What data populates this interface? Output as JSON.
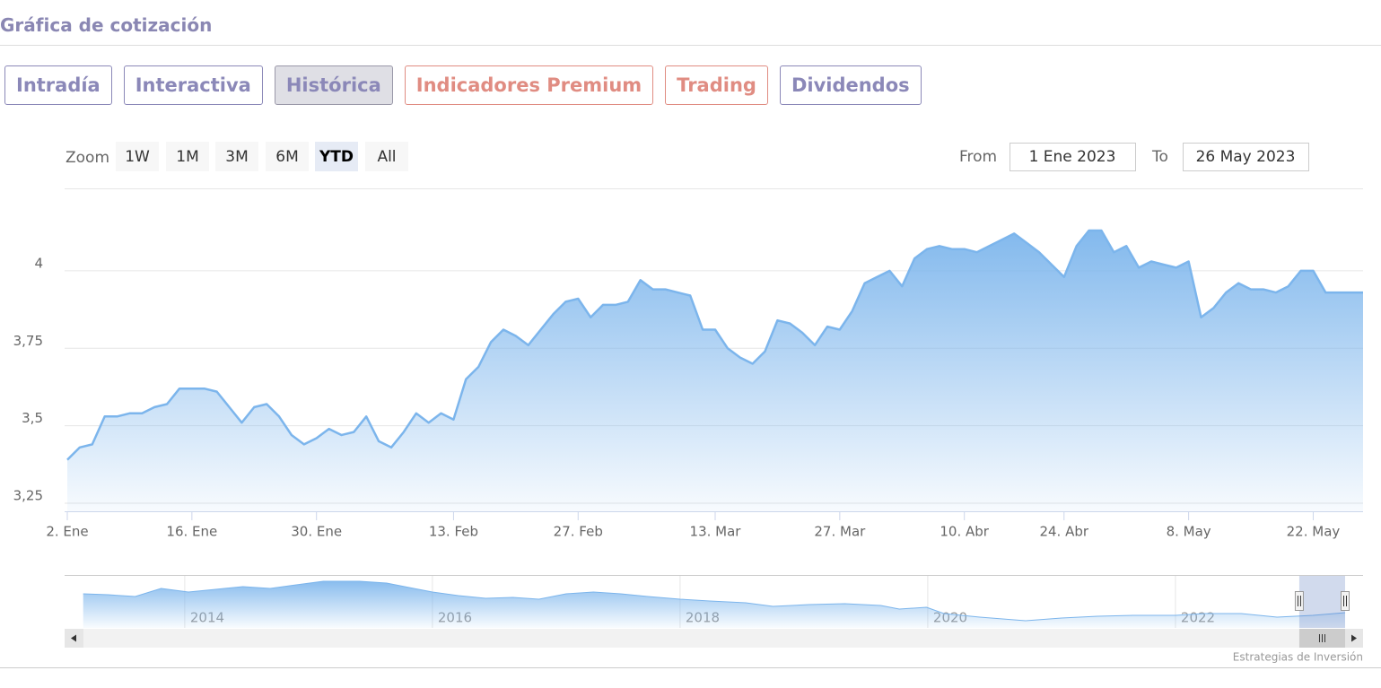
{
  "header": {
    "title": "Gráfica de cotización"
  },
  "tabs": [
    {
      "label": "Intradía",
      "color": "#8b88b8",
      "active": false
    },
    {
      "label": "Interactiva",
      "color": "#8b88b8",
      "active": false
    },
    {
      "label": "Histórica",
      "color": "#8b88b8",
      "active": true
    },
    {
      "label": "Indicadores Premium",
      "color": "#e08c82",
      "active": false
    },
    {
      "label": "Trading",
      "color": "#e08c82",
      "active": false
    },
    {
      "label": "Dividendos",
      "color": "#8b88b8",
      "active": false
    }
  ],
  "zoom": {
    "label": "Zoom",
    "buttons": [
      "1W",
      "1M",
      "3M",
      "6M",
      "YTD",
      "All"
    ],
    "selected": 4
  },
  "range": {
    "from_label": "From",
    "from": "1 Ene 2023",
    "to_label": "To",
    "to": "26 May 2023"
  },
  "credits": "Estrategias de Inversión",
  "chart_data": [
    {
      "type": "area",
      "color": "#7cb5ec",
      "grid": true,
      "categories": [
        "2. Ene",
        null,
        null,
        null,
        null,
        null,
        null,
        null,
        null,
        null,
        "16. Ene",
        null,
        null,
        null,
        null,
        null,
        null,
        null,
        null,
        null,
        "30. Ene",
        null,
        null,
        null,
        null,
        null,
        null,
        null,
        null,
        null,
        null,
        "13. Feb",
        null,
        null,
        null,
        null,
        null,
        null,
        null,
        null,
        null,
        "27. Feb",
        null,
        null,
        null,
        null,
        null,
        null,
        null,
        null,
        null,
        null,
        "13. Mar",
        null,
        null,
        null,
        null,
        null,
        null,
        null,
        null,
        null,
        "27. Mar",
        null,
        null,
        null,
        null,
        null,
        null,
        null,
        null,
        null,
        "10. Abr",
        null,
        null,
        null,
        null,
        null,
        null,
        null,
        "24. Abr",
        null,
        null,
        null,
        null,
        null,
        null,
        null,
        null,
        null,
        "8. May",
        null,
        null,
        null,
        null,
        null,
        null,
        null,
        null,
        null,
        "22. May",
        null,
        null,
        null,
        null
      ],
      "values": [
        3.39,
        3.43,
        3.44,
        3.53,
        3.53,
        3.54,
        3.54,
        3.56,
        3.57,
        3.62,
        3.62,
        3.62,
        3.61,
        3.56,
        3.51,
        3.56,
        3.57,
        3.53,
        3.47,
        3.44,
        3.46,
        3.49,
        3.47,
        3.48,
        3.53,
        3.45,
        3.43,
        3.48,
        3.54,
        3.51,
        3.54,
        3.52,
        3.65,
        3.69,
        3.77,
        3.81,
        3.79,
        3.76,
        3.81,
        3.86,
        3.9,
        3.91,
        3.85,
        3.89,
        3.89,
        3.9,
        3.97,
        3.94,
        3.94,
        3.93,
        3.92,
        3.81,
        3.81,
        3.75,
        3.72,
        3.7,
        3.74,
        3.84,
        3.83,
        3.8,
        3.76,
        3.82,
        3.81,
        3.87,
        3.96,
        3.98,
        4.0,
        3.95,
        4.04,
        4.07,
        4.08,
        4.07,
        4.07,
        4.06,
        4.08,
        4.1,
        4.12,
        4.09,
        4.06,
        4.02,
        3.98,
        4.08,
        4.13,
        4.13,
        4.06,
        4.08,
        4.01,
        4.03,
        4.02,
        4.01,
        4.03,
        3.85,
        3.88,
        3.93,
        3.96,
        3.94,
        3.94,
        3.93,
        3.95,
        4.0,
        4.0,
        3.93,
        3.93,
        3.93,
        3.93
      ],
      "ylim": [
        3.224,
        4.266
      ],
      "yticks": [
        {
          "value": 3.25,
          "label": "3,25"
        },
        {
          "value": 3.5,
          "label": "3,5"
        },
        {
          "value": 3.75,
          "label": "3,75"
        },
        4
      ]
    },
    {
      "type": "area",
      "color": "#7cb5ec",
      "x": [
        2013.18,
        2013.38,
        2013.6,
        2013.81,
        2014.03,
        2014.25,
        2014.47,
        2014.69,
        2014.9,
        2015.12,
        2015.41,
        2015.63,
        2015.85,
        2016.0,
        2016.21,
        2016.43,
        2016.65,
        2016.86,
        2017.08,
        2017.3,
        2017.52,
        2017.74,
        2018.0,
        2018.24,
        2018.53,
        2018.75,
        2019.04,
        2019.33,
        2019.62,
        2019.77,
        2019.99,
        2020.13,
        2020.42,
        2020.79,
        2021.08,
        2021.37,
        2021.66,
        2022.0,
        2022.24,
        2022.53,
        2022.82,
        2023.11,
        2023.37
      ],
      "values": [
        9.05,
        8.81,
        8.33,
        10.48,
        9.52,
        10.24,
        10.95,
        10.48,
        11.43,
        12.38,
        12.38,
        11.9,
        10.48,
        9.52,
        8.57,
        7.86,
        8.1,
        7.62,
        9.05,
        9.52,
        9.05,
        8.33,
        7.62,
        7.14,
        6.67,
        5.71,
        6.19,
        6.43,
        5.95,
        5.0,
        5.48,
        3.81,
        2.86,
        1.9,
        2.62,
        3.1,
        3.33,
        3.33,
        3.81,
        3.81,
        2.86,
        3.33,
        4.05
      ],
      "xlim": [
        2013.03,
        2023.37
      ],
      "ylim": [
        0,
        13.8
      ],
      "xticks": [
        2014,
        2016,
        2018,
        2020,
        2022
      ],
      "selection": [
        2023.0,
        2023.37
      ]
    }
  ]
}
